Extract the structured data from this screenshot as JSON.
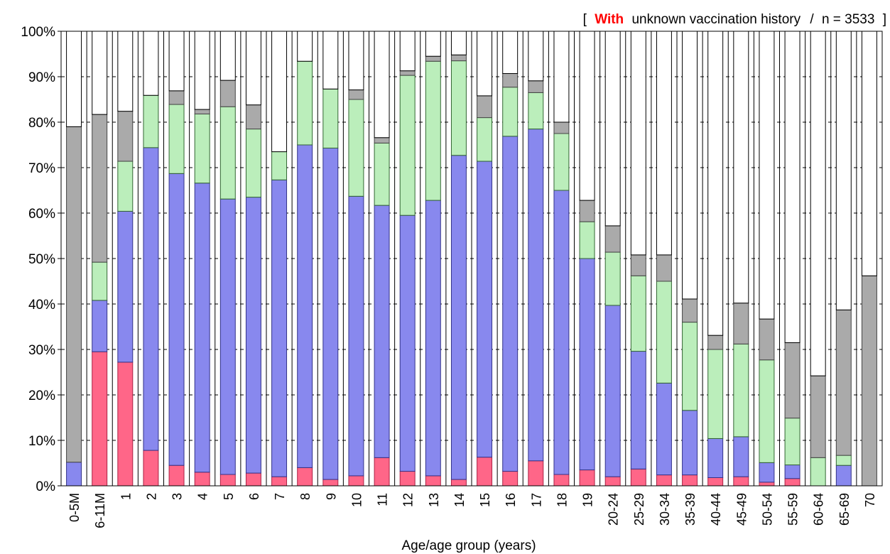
{
  "note": {
    "bracket_open": "[",
    "with_word": "With",
    "rest": "unknown vaccination history",
    "sep": "/",
    "n": "n = 3533",
    "bracket_close": "]"
  },
  "chart_data": {
    "type": "bar",
    "stacked": true,
    "xlabel": "Age/age group (years)",
    "ylabel": "",
    "ylim": [
      0,
      100
    ],
    "y_ticks": [
      "0%",
      "10%",
      "20%",
      "30%",
      "40%",
      "50%",
      "60%",
      "70%",
      "80%",
      "90%",
      "100%"
    ],
    "grid": "horizontal dashed",
    "categories": [
      "0-5M",
      "6-11M",
      "1",
      "2",
      "3",
      "4",
      "5",
      "6",
      "7",
      "8",
      "9",
      "10",
      "11",
      "12",
      "13",
      "14",
      "15",
      "16",
      "17",
      "18",
      "19",
      "20-24",
      "25-29",
      "30-34",
      "35-39",
      "40-44",
      "45-49",
      "50-54",
      "55-59",
      "60-64",
      "65-69",
      "70"
    ],
    "series": [
      {
        "color": "#ff6688",
        "edge": "#aa2244",
        "values": [
          0,
          29.5,
          27.2,
          7.8,
          4.5,
          3.0,
          2.5,
          2.8,
          2.0,
          4.0,
          1.4,
          2.2,
          6.2,
          3.2,
          2.2,
          1.4,
          6.3,
          3.2,
          5.5,
          2.5,
          3.5,
          2.0,
          3.7,
          2.4,
          2.4,
          1.8,
          2.0,
          0.8,
          1.6,
          0,
          0,
          0
        ]
      },
      {
        "color": "#8888ee",
        "edge": "#333388",
        "values": [
          5.2,
          11.3,
          33.2,
          66.6,
          64.2,
          63.6,
          60.6,
          60.7,
          65.3,
          71.0,
          72.9,
          61.5,
          55.5,
          56.3,
          60.6,
          71.3,
          65.1,
          73.7,
          73.0,
          62.5,
          46.5,
          37.7,
          25.9,
          20.2,
          14.2,
          8.6,
          8.8,
          4.3,
          3.0,
          0,
          4.5,
          0
        ]
      },
      {
        "color": "#bbeebb",
        "edge": "#336633",
        "values": [
          0,
          8.4,
          11.0,
          11.5,
          15.2,
          15.2,
          20.3,
          15.0,
          6.2,
          18.4,
          13.0,
          21.3,
          13.7,
          30.8,
          30.6,
          20.8,
          9.6,
          10.8,
          8.0,
          12.5,
          8.1,
          11.7,
          16.6,
          22.4,
          19.4,
          19.6,
          20.4,
          22.6,
          10.3,
          6.2,
          2.2,
          0
        ]
      },
      {
        "color": "#aaaaaa",
        "edge": "#444444",
        "values": [
          73.8,
          32.5,
          11.0,
          0,
          3.0,
          1.0,
          5.8,
          5.3,
          0,
          0,
          0,
          2.1,
          1.2,
          1.0,
          1.1,
          1.3,
          4.8,
          3.0,
          2.6,
          2.5,
          4.7,
          5.8,
          4.6,
          5.8,
          5.1,
          3.1,
          9.0,
          9.0,
          16.6,
          18.0,
          32.0,
          46.2
        ]
      },
      {
        "color": "#ffffff",
        "edge": "#000000",
        "values": [
          21.0,
          18.3,
          17.6,
          14.1,
          13.1,
          17.2,
          10.8,
          16.2,
          26.5,
          6.6,
          12.7,
          12.9,
          23.4,
          8.7,
          5.5,
          5.2,
          14.2,
          9.3,
          10.9,
          20.0,
          37.2,
          42.8,
          49.2,
          49.2,
          58.9,
          66.9,
          59.8,
          63.3,
          68.5,
          75.8,
          61.3,
          53.8
        ]
      }
    ]
  }
}
